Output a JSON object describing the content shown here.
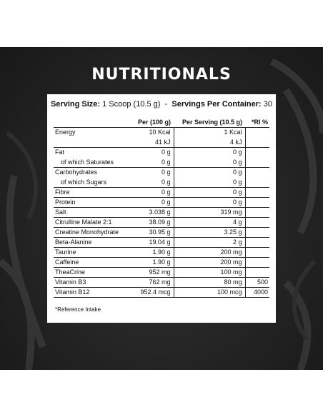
{
  "title": "NUTRITIONALS",
  "serving": {
    "size_label": "Serving Size:",
    "size_value": "1 Scoop (10.5 g)",
    "separator": "-",
    "container_label": "Servings Per Container:",
    "container_value": "30"
  },
  "table": {
    "headers": [
      "",
      "Per (100 g)",
      "Per Serving (10.5 g)",
      "*RI %"
    ],
    "rows": [
      {
        "name": "Energy",
        "per100": "10 Kcal",
        "serving": "1 Kcal",
        "ri": "",
        "sub": false,
        "sep": false
      },
      {
        "name": "",
        "per100": "41 kJ",
        "serving": "4 kJ",
        "ri": "",
        "sub": false,
        "sep": true
      },
      {
        "name": "Fat",
        "per100": "0 g",
        "serving": "0 g",
        "ri": "",
        "sub": false,
        "sep": false
      },
      {
        "name": "of which Saturates",
        "per100": "0 g",
        "serving": "0 g",
        "ri": "",
        "sub": true,
        "sep": true
      },
      {
        "name": "Carbohydrates",
        "per100": "0 g",
        "serving": "0 g",
        "ri": "",
        "sub": false,
        "sep": false
      },
      {
        "name": "of which Sugars",
        "per100": "0 g",
        "serving": "0 g",
        "ri": "",
        "sub": true,
        "sep": true
      },
      {
        "name": "Fibre",
        "per100": "0 g",
        "serving": "0 g",
        "ri": "",
        "sub": false,
        "sep": true
      },
      {
        "name": "Protein",
        "per100": "0 g",
        "serving": "0 g",
        "ri": "",
        "sub": false,
        "sep": true
      },
      {
        "name": "Salt",
        "per100": "3.038 g",
        "serving": "319 mg",
        "ri": "",
        "sub": false,
        "sep": true
      },
      {
        "name": "Citrulline Malate 2:1",
        "per100": "38.09 g",
        "serving": "4 g",
        "ri": "",
        "sub": false,
        "sep": true
      },
      {
        "name": "Creatine Monohydrate",
        "per100": "30.95 g",
        "serving": "3.25 g",
        "ri": "",
        "sub": false,
        "sep": true
      },
      {
        "name": "Beta-Alanine",
        "per100": "19.04 g",
        "serving": "2 g",
        "ri": "",
        "sub": false,
        "sep": true
      },
      {
        "name": "Taurine",
        "per100": "1.90 g",
        "serving": "200 mg",
        "ri": "",
        "sub": false,
        "sep": true
      },
      {
        "name": "Caffeine",
        "per100": "1.90 g",
        "serving": "200 mg",
        "ri": "",
        "sub": false,
        "sep": true
      },
      {
        "name": "TheaCrine",
        "per100": "952 mg",
        "serving": "100 mg",
        "ri": "",
        "sub": false,
        "sep": true
      },
      {
        "name": "Vitamin B3",
        "per100": "762 mg",
        "serving": "80 mg",
        "ri": "500",
        "sub": false,
        "sep": true
      },
      {
        "name": "Vitamin B12",
        "per100": "952.4 mcg",
        "serving": "100 mcg",
        "ri": "4000",
        "sub": false,
        "sep": true
      }
    ]
  },
  "footnote": "*Reference Intake",
  "colors": {
    "background": "#242424",
    "panel": "#ffffff",
    "title": "#ffffff",
    "text": "#111111"
  }
}
